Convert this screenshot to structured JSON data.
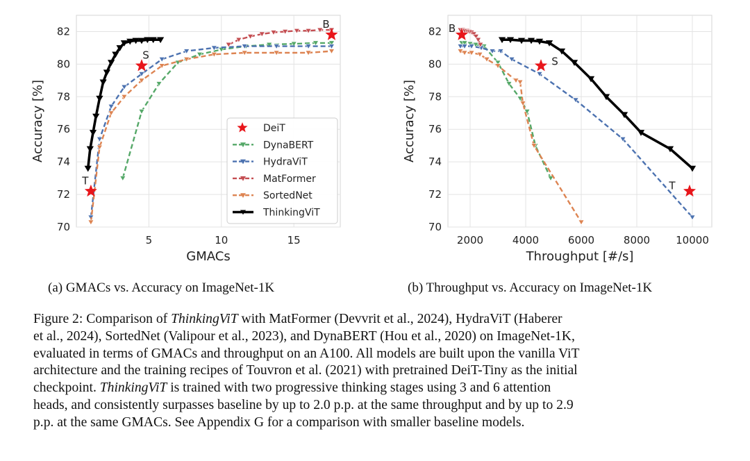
{
  "chart_data": [
    {
      "type": "line",
      "panel": "a",
      "xlabel": "GMACs",
      "ylabel": "Accuracy [%]",
      "xlim": [
        0,
        18.2
      ],
      "ylim": [
        70,
        83
      ],
      "xticks": [
        5,
        10,
        15
      ],
      "yticks": [
        70,
        72,
        74,
        76,
        78,
        80,
        82
      ],
      "grid": true,
      "legend_position": "center-right",
      "legend": [
        "DeiT",
        "DynaBERT",
        "HydraViT",
        "MatFormer",
        "SortedNet",
        "ThinkingViT"
      ],
      "series": [
        {
          "name": "DynaBERT",
          "color": "#55a868",
          "x": [
            3.2,
            4.5,
            5.7,
            7.0,
            8.5,
            10.0,
            11.7,
            13.3,
            15.0,
            16.5,
            17.6
          ],
          "y": [
            73.0,
            77.1,
            78.8,
            80.1,
            80.6,
            80.9,
            81.1,
            81.2,
            81.25,
            81.3,
            81.3
          ]
        },
        {
          "name": "HydraViT",
          "color": "#4c72b0",
          "x": [
            1.0,
            1.6,
            2.4,
            3.3,
            4.5,
            5.9,
            7.6,
            9.5,
            11.6,
            13.8,
            16.0,
            17.6
          ],
          "y": [
            70.6,
            75.4,
            77.4,
            78.6,
            79.4,
            80.3,
            80.8,
            81.0,
            81.1,
            81.1,
            81.1,
            81.1
          ]
        },
        {
          "name": "MatFormer",
          "color": "#c44e52",
          "x": [
            10.5,
            11.2,
            12.0,
            12.8,
            13.6,
            14.4,
            15.2,
            16.0,
            16.8,
            17.6
          ],
          "y": [
            81.2,
            81.5,
            81.7,
            81.85,
            81.95,
            82.0,
            82.05,
            82.05,
            82.1,
            82.1
          ]
        },
        {
          "name": "SortedNet",
          "color": "#dd8452",
          "x": [
            1.0,
            1.6,
            2.4,
            3.3,
            4.5,
            5.9,
            7.6,
            9.5,
            11.6,
            13.8,
            16.0,
            17.6
          ],
          "y": [
            70.3,
            74.9,
            77.0,
            78.0,
            79.0,
            79.9,
            80.3,
            80.6,
            80.7,
            80.7,
            80.7,
            80.8
          ]
        },
        {
          "name": "ThinkingViT",
          "color": "#000000",
          "x": [
            0.8,
            0.95,
            1.15,
            1.35,
            1.6,
            1.85,
            2.1,
            2.4,
            2.7,
            3.0,
            3.3,
            3.7,
            4.1,
            4.5,
            4.9,
            5.3,
            5.8
          ],
          "y": [
            73.6,
            74.8,
            75.8,
            76.8,
            77.9,
            78.9,
            79.5,
            80.1,
            80.6,
            81.0,
            81.3,
            81.4,
            81.45,
            81.45,
            81.5,
            81.5,
            81.5
          ]
        }
      ],
      "deit_points": [
        {
          "label": "T",
          "x": 1.0,
          "y": 72.2
        },
        {
          "label": "S",
          "x": 4.5,
          "y": 79.9
        },
        {
          "label": "B",
          "x": 17.6,
          "y": 81.8
        }
      ]
    },
    {
      "type": "line",
      "panel": "b",
      "xlabel": "Throughput [#/s]",
      "ylabel": "Accuracy [%]",
      "xlim": [
        1200,
        10700
      ],
      "ylim": [
        70,
        83
      ],
      "xticks": [
        2000,
        4000,
        6000,
        8000,
        10000
      ],
      "yticks": [
        70,
        72,
        74,
        76,
        78,
        80,
        82
      ],
      "grid": true,
      "series": [
        {
          "name": "DynaBERT",
          "color": "#55a868",
          "x": [
            1700,
            1800,
            2000,
            2200,
            2500,
            3000,
            3400,
            3800,
            4050,
            4350,
            4900
          ],
          "y": [
            81.3,
            81.3,
            81.25,
            81.2,
            81.1,
            80.1,
            78.8,
            77.9,
            77.1,
            75.0,
            73.0
          ]
        },
        {
          "name": "HydraViT",
          "color": "#4c72b0",
          "x": [
            1650,
            1800,
            2050,
            2400,
            2800,
            3100,
            3500,
            4500,
            5800,
            7500,
            10000
          ],
          "y": [
            81.1,
            81.1,
            81.1,
            81.0,
            80.8,
            80.8,
            80.3,
            79.4,
            77.8,
            75.4,
            70.6
          ]
        },
        {
          "name": "MatFormer",
          "color": "#c44e52",
          "x": [
            1650,
            1730,
            1810,
            1890,
            1970,
            2050,
            2130,
            2210,
            2290,
            2370
          ],
          "y": [
            82.1,
            82.1,
            82.05,
            82.05,
            82.0,
            81.95,
            81.85,
            81.7,
            81.5,
            81.2
          ]
        },
        {
          "name": "SortedNet",
          "color": "#dd8452",
          "x": [
            1650,
            1800,
            2050,
            2350,
            2600,
            3000,
            3650,
            3800,
            3900,
            4300,
            6000
          ],
          "y": [
            80.8,
            80.7,
            80.7,
            80.6,
            80.3,
            79.9,
            79.0,
            78.9,
            77.6,
            75.0,
            70.3
          ]
        },
        {
          "name": "ThinkingViT",
          "color": "#000000",
          "x": [
            3150,
            3450,
            3850,
            4200,
            4500,
            4850,
            5300,
            5750,
            6350,
            6900,
            7550,
            8150,
            9200,
            10000
          ],
          "y": [
            81.5,
            81.5,
            81.45,
            81.45,
            81.4,
            81.3,
            80.8,
            80.1,
            79.1,
            78.0,
            76.9,
            75.8,
            74.8,
            73.6
          ]
        }
      ],
      "deit_points": [
        {
          "label": "B",
          "x": 1700,
          "y": 81.8
        },
        {
          "label": "S",
          "x": 4550,
          "y": 79.9
        },
        {
          "label": "T",
          "x": 9900,
          "y": 72.2
        }
      ]
    }
  ],
  "subcaptions": {
    "a": "(a) GMACs vs. Accuracy on ImageNet-1K",
    "b": "(b) Throughput vs. Accuracy on ImageNet-1K"
  },
  "caption": {
    "l1a": "Figure 2: Comparison of ",
    "l1b": "ThinkingViT",
    "l1c": " with MatFormer (Devvrit et al., 2024), HydraViT (Haberer",
    "l2": "et al., 2024), SortedNet (Valipour et al., 2023), and DynaBERT (Hou et al., 2020) on ImageNet-1K,",
    "l3": "evaluated in terms of GMACs and throughput on an A100. All models are built upon the vanilla ViT",
    "l4": "architecture and the training recipes of Touvron et al. (2021) with pretrained DeiT-Tiny as the initial",
    "l5a": "checkpoint. ",
    "l5b": "ThinkingViT",
    "l5c": " is trained with two progressive thinking stages using 3 and 6 attention",
    "l6": "heads, and consistently surpasses baseline by up to 2.0 p.p. at the same throughput and by up to 2.9",
    "l7": "p.p. at the same GMACs. See Appendix G for a comparison with smaller baseline models."
  }
}
